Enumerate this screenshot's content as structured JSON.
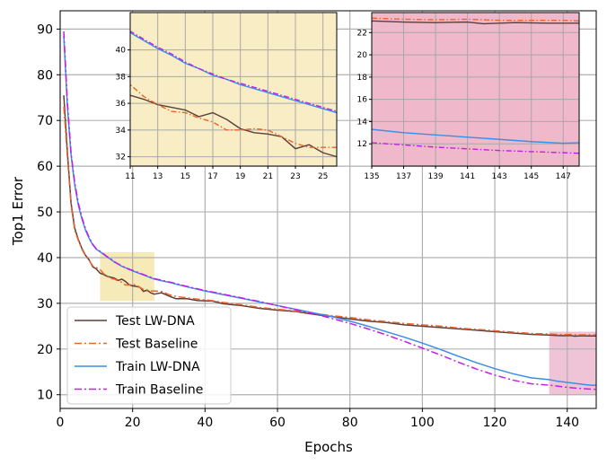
{
  "chart_data": {
    "type": "line",
    "xlabel": "Epochs",
    "ylabel": "Top1 Error",
    "xlim": [
      0,
      148
    ],
    "ylim": [
      7,
      94
    ],
    "xticks": [
      0,
      20,
      40,
      60,
      80,
      100,
      120,
      140
    ],
    "yticks": [
      10,
      20,
      30,
      40,
      50,
      60,
      70,
      80,
      90
    ],
    "grid": true,
    "legend_position": "bottom-left",
    "highlight_regions": [
      {
        "x": [
          11,
          26
        ],
        "y": [
          30.5,
          41.2
        ],
        "color": "#f4e3a2"
      },
      {
        "x": [
          135,
          148
        ],
        "y": [
          10,
          23.8
        ],
        "color": "#eab0c8"
      }
    ],
    "series": [
      {
        "name": "Test LW-DNA",
        "color": "#5a3f3a",
        "dash": "solid",
        "points": [
          [
            1,
            75.5
          ],
          [
            2,
            63
          ],
          [
            3,
            52
          ],
          [
            4,
            46.5
          ],
          [
            5,
            44
          ],
          [
            6,
            42
          ],
          [
            7,
            40.5
          ],
          [
            8,
            39.5
          ],
          [
            9,
            38
          ],
          [
            10,
            37.5
          ],
          [
            11,
            36.6
          ],
          [
            12,
            36.3
          ],
          [
            13,
            35.9
          ],
          [
            14,
            35.7
          ],
          [
            15,
            35.5
          ],
          [
            16,
            35
          ],
          [
            17,
            35.3
          ],
          [
            18,
            34.8
          ],
          [
            19,
            34.1
          ],
          [
            20,
            33.8
          ],
          [
            21,
            33.7
          ],
          [
            22,
            33.5
          ],
          [
            23,
            32.6
          ],
          [
            24,
            32.9
          ],
          [
            25,
            32.3
          ],
          [
            26,
            32
          ],
          [
            28,
            32.3
          ],
          [
            30,
            31.6
          ],
          [
            32,
            31
          ],
          [
            35,
            31
          ],
          [
            38,
            30.6
          ],
          [
            42,
            30.5
          ],
          [
            45,
            29.9
          ],
          [
            50,
            29.5
          ],
          [
            55,
            28.9
          ],
          [
            60,
            28.5
          ],
          [
            65,
            28.2
          ],
          [
            70,
            27.6
          ],
          [
            75,
            27.1
          ],
          [
            80,
            26.6
          ],
          [
            85,
            26.1
          ],
          [
            90,
            25.8
          ],
          [
            95,
            25.3
          ],
          [
            100,
            25
          ],
          [
            105,
            24.7
          ],
          [
            110,
            24.4
          ],
          [
            115,
            24.1
          ],
          [
            120,
            23.8
          ],
          [
            125,
            23.5
          ],
          [
            130,
            23.2
          ],
          [
            135,
            23.05
          ],
          [
            137,
            22.95
          ],
          [
            139,
            22.9
          ],
          [
            141,
            22.95
          ],
          [
            142,
            22.8
          ],
          [
            144,
            22.9
          ],
          [
            146,
            22.85
          ],
          [
            148,
            22.85
          ]
        ]
      },
      {
        "name": "Test Baseline",
        "color": "#f0622a",
        "dash": "dashdot",
        "points": [
          [
            1,
            73
          ],
          [
            2,
            62
          ],
          [
            3,
            51.5
          ],
          [
            4,
            46
          ],
          [
            5,
            43.8
          ],
          [
            6,
            41.8
          ],
          [
            7,
            40.4
          ],
          [
            8,
            39.4
          ],
          [
            9,
            38.2
          ],
          [
            10,
            37.8
          ],
          [
            11,
            37.4
          ],
          [
            12,
            36.5
          ],
          [
            13,
            35.9
          ],
          [
            14,
            35.4
          ],
          [
            15,
            35.3
          ],
          [
            16,
            34.9
          ],
          [
            17,
            34.6
          ],
          [
            18,
            34
          ],
          [
            19,
            34
          ],
          [
            20,
            34.1
          ],
          [
            21,
            34
          ],
          [
            22,
            33.5
          ],
          [
            23,
            33
          ],
          [
            24,
            32.7
          ],
          [
            25,
            32.7
          ],
          [
            26,
            32.7
          ],
          [
            28,
            32.6
          ],
          [
            30,
            31.9
          ],
          [
            32,
            31.5
          ],
          [
            35,
            31.2
          ],
          [
            38,
            30.9
          ],
          [
            42,
            30.6
          ],
          [
            45,
            30.2
          ],
          [
            50,
            29.7
          ],
          [
            55,
            29.1
          ],
          [
            60,
            28.7
          ],
          [
            65,
            28.3
          ],
          [
            70,
            27.8
          ],
          [
            75,
            27.3
          ],
          [
            80,
            26.9
          ],
          [
            85,
            26.4
          ],
          [
            90,
            26
          ],
          [
            95,
            25.6
          ],
          [
            100,
            25.3
          ],
          [
            105,
            25
          ],
          [
            110,
            24.6
          ],
          [
            115,
            24.3
          ],
          [
            120,
            24
          ],
          [
            125,
            23.7
          ],
          [
            130,
            23.4
          ],
          [
            135,
            23.3
          ],
          [
            137,
            23.2
          ],
          [
            139,
            23.15
          ],
          [
            141,
            23.2
          ],
          [
            143,
            23.1
          ],
          [
            145,
            23.1
          ],
          [
            147,
            23.1
          ],
          [
            148,
            23.05
          ]
        ]
      },
      {
        "name": "Train LW-DNA",
        "color": "#3a8ee6",
        "dash": "solid",
        "points": [
          [
            1,
            88.5
          ],
          [
            2,
            73
          ],
          [
            3,
            62.5
          ],
          [
            4,
            56
          ],
          [
            5,
            51.5
          ],
          [
            6,
            48.5
          ],
          [
            7,
            46
          ],
          [
            8,
            44.2
          ],
          [
            9,
            42.8
          ],
          [
            10,
            41.8
          ],
          [
            11,
            41.3
          ],
          [
            12,
            40.7
          ],
          [
            13,
            40.1
          ],
          [
            14,
            39.6
          ],
          [
            15,
            39
          ],
          [
            16,
            38.6
          ],
          [
            17,
            38.1
          ],
          [
            18,
            37.8
          ],
          [
            19,
            37.4
          ],
          [
            20,
            37.1
          ],
          [
            21,
            36.8
          ],
          [
            22,
            36.5
          ],
          [
            23,
            36.2
          ],
          [
            24,
            35.9
          ],
          [
            25,
            35.6
          ],
          [
            26,
            35.3
          ],
          [
            30,
            34.6
          ],
          [
            35,
            33.6
          ],
          [
            40,
            32.7
          ],
          [
            45,
            31.9
          ],
          [
            50,
            31.1
          ],
          [
            55,
            30.3
          ],
          [
            60,
            29.5
          ],
          [
            65,
            28.7
          ],
          [
            70,
            27.9
          ],
          [
            75,
            27.1
          ],
          [
            80,
            26.1
          ],
          [
            85,
            25
          ],
          [
            90,
            23.8
          ],
          [
            95,
            22.6
          ],
          [
            100,
            21.3
          ],
          [
            105,
            19.9
          ],
          [
            110,
            18.4
          ],
          [
            115,
            17
          ],
          [
            120,
            15.7
          ],
          [
            125,
            14.6
          ],
          [
            130,
            13.7
          ],
          [
            135,
            13.3
          ],
          [
            137,
            13
          ],
          [
            139,
            12.8
          ],
          [
            141,
            12.6
          ],
          [
            143,
            12.4
          ],
          [
            145,
            12.2
          ],
          [
            147,
            12.05
          ],
          [
            148,
            12.1
          ]
        ]
      },
      {
        "name": "Train Baseline",
        "color": "#c21ee8",
        "dash": "dashdot",
        "points": [
          [
            1,
            89.5
          ],
          [
            2,
            74
          ],
          [
            3,
            63
          ],
          [
            4,
            56.5
          ],
          [
            5,
            52
          ],
          [
            6,
            48.8
          ],
          [
            7,
            46.3
          ],
          [
            8,
            44.4
          ],
          [
            9,
            42.9
          ],
          [
            10,
            41.9
          ],
          [
            11,
            41.4
          ],
          [
            12,
            40.8
          ],
          [
            13,
            40.2
          ],
          [
            14,
            39.7
          ],
          [
            15,
            39.1
          ],
          [
            16,
            38.6
          ],
          [
            17,
            38.2
          ],
          [
            18,
            37.8
          ],
          [
            19,
            37.5
          ],
          [
            20,
            37.2
          ],
          [
            21,
            36.9
          ],
          [
            22,
            36.6
          ],
          [
            23,
            36.3
          ],
          [
            24,
            36
          ],
          [
            25,
            35.7
          ],
          [
            26,
            35.4
          ],
          [
            30,
            34.7
          ],
          [
            35,
            33.7
          ],
          [
            40,
            32.8
          ],
          [
            45,
            32
          ],
          [
            50,
            31.2
          ],
          [
            55,
            30.4
          ],
          [
            60,
            29.5
          ],
          [
            65,
            28.6
          ],
          [
            70,
            27.7
          ],
          [
            75,
            26.7
          ],
          [
            80,
            25.6
          ],
          [
            85,
            24.4
          ],
          [
            90,
            23.1
          ],
          [
            95,
            21.7
          ],
          [
            100,
            20.2
          ],
          [
            105,
            18.7
          ],
          [
            110,
            17.1
          ],
          [
            115,
            15.6
          ],
          [
            120,
            14.3
          ],
          [
            125,
            13.2
          ],
          [
            130,
            12.4
          ],
          [
            135,
            12.1
          ],
          [
            137,
            11.9
          ],
          [
            139,
            11.7
          ],
          [
            141,
            11.55
          ],
          [
            143,
            11.4
          ],
          [
            145,
            11.3
          ],
          [
            147,
            11.2
          ],
          [
            148,
            11.15
          ]
        ]
      }
    ],
    "insets": [
      {
        "xlim": [
          11,
          26
        ],
        "ylim": [
          31.3,
          42.8
        ],
        "xticks": [
          11,
          13,
          15,
          17,
          19,
          21,
          23,
          25
        ],
        "yticks": [
          32,
          34,
          36,
          38,
          40
        ],
        "background": "#f8edc4"
      },
      {
        "xlim": [
          135,
          148
        ],
        "ylim": [
          10,
          23.8
        ],
        "xticks": [
          135,
          137,
          139,
          141,
          143,
          145,
          147
        ],
        "yticks": [
          12,
          14,
          16,
          18,
          20,
          22
        ],
        "background": "#efb8cb"
      }
    ]
  }
}
